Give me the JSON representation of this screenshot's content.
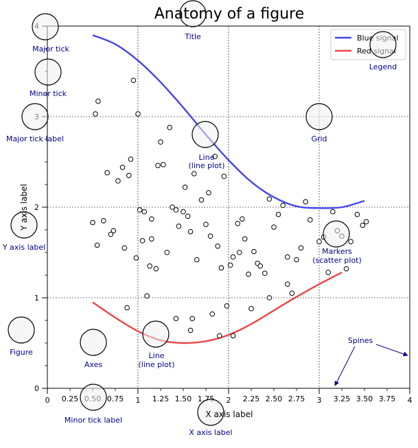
{
  "chart_data": {
    "type": "line",
    "title": "Anatomy of a figure",
    "xlabel": "X axis label",
    "ylabel": "Y axis label",
    "xlim": [
      0,
      4
    ],
    "ylim": [
      0,
      4
    ],
    "major_x_ticks": [
      0,
      1,
      2,
      3,
      4
    ],
    "minor_x_ticks": [
      0.25,
      0.5,
      0.75,
      1.25,
      1.5,
      1.75,
      2.25,
      2.5,
      2.75,
      3.25,
      3.5,
      3.75
    ],
    "major_x_tick_labels": [
      "0",
      "1",
      "2",
      "3",
      "4"
    ],
    "minor_x_tick_labels": [
      "0.25",
      "0.50",
      "0.75",
      "1.25",
      "1.50",
      "1.75",
      "2.25",
      "2.50",
      "2.75",
      "3.25",
      "3.50",
      "3.75"
    ],
    "major_y_ticks": [
      0,
      1,
      2,
      3,
      4
    ],
    "major_y_tick_labels": [
      "0",
      "1",
      "2",
      "3",
      "4"
    ],
    "grid": true,
    "legend": {
      "position": "top-right",
      "entries": [
        "Blue signal",
        "Red signal"
      ]
    },
    "series": [
      {
        "name": "Blue signal",
        "color": "#4444ee",
        "x": [
          0.5,
          0.75,
          1.0,
          1.25,
          1.5,
          1.75,
          2.0,
          2.25,
          2.5,
          2.75,
          3.0,
          3.25,
          3.5
        ],
        "y": [
          3.9,
          3.8,
          3.62,
          3.38,
          3.1,
          2.8,
          2.52,
          2.28,
          2.11,
          2.01,
          1.99,
          2.0,
          2.07
        ]
      },
      {
        "name": "Red signal",
        "color": "#ee4444",
        "x": [
          0.5,
          0.75,
          1.0,
          1.25,
          1.5,
          1.75,
          2.0,
          2.25,
          2.5,
          2.75,
          3.0,
          3.25
        ],
        "y": [
          0.95,
          0.78,
          0.63,
          0.53,
          0.5,
          0.52,
          0.59,
          0.71,
          0.86,
          1.01,
          1.15,
          1.28
        ]
      },
      {
        "name": "Markers",
        "type": "scatter",
        "color": "#000000",
        "x": [
          0.53,
          0.56,
          0.62,
          0.66,
          0.73,
          0.78,
          0.83,
          0.85,
          0.9,
          0.92,
          0.95,
          0.98,
          1.0,
          1.02,
          1.05,
          1.07,
          1.1,
          1.13,
          1.15,
          1.2,
          1.22,
          1.25,
          1.28,
          1.32,
          1.35,
          1.38,
          1.42,
          1.45,
          1.5,
          1.52,
          1.55,
          1.58,
          1.62,
          1.65,
          1.7,
          1.75,
          1.78,
          1.8,
          1.85,
          1.88,
          1.92,
          1.95,
          1.98,
          2.02,
          2.05,
          2.1,
          2.15,
          2.18,
          2.22,
          2.28,
          2.32,
          2.35,
          2.4,
          2.45,
          2.5,
          2.55,
          2.6,
          2.65,
          2.7,
          2.75,
          2.8,
          2.85,
          2.9,
          3.0,
          3.05,
          3.1,
          3.15,
          3.2,
          3.25,
          3.3,
          3.35,
          3.42,
          3.48,
          3.52,
          0.5,
          0.55,
          0.88,
          1.15,
          1.42,
          1.58,
          1.82,
          2.05,
          2.25,
          2.45,
          2.65,
          0.7,
          1.6,
          1.9,
          2.12
        ],
        "y": [
          3.03,
          3.17,
          1.85,
          2.38,
          1.74,
          2.29,
          2.44,
          1.55,
          2.35,
          2.53,
          3.4,
          1.44,
          3.03,
          1.97,
          1.63,
          1.95,
          1.02,
          1.35,
          1.65,
          1.32,
          2.46,
          2.72,
          2.47,
          1.5,
          2.88,
          2.0,
          1.97,
          1.79,
          1.95,
          2.22,
          1.9,
          1.73,
          2.37,
          1.42,
          2.08,
          1.81,
          2.16,
          1.68,
          2.56,
          1.57,
          1.33,
          2.34,
          0.91,
          1.36,
          1.45,
          1.82,
          1.87,
          1.65,
          1.26,
          1.51,
          1.38,
          1.35,
          1.27,
          2.09,
          1.78,
          1.92,
          2.02,
          1.45,
          1.05,
          1.42,
          1.55,
          2.06,
          1.86,
          1.62,
          1.67,
          1.28,
          1.95,
          1.74,
          1.68,
          1.32,
          1.62,
          1.92,
          1.8,
          1.84,
          1.83,
          1.58,
          0.89,
          1.87,
          0.77,
          0.64,
          0.82,
          0.58,
          0.88,
          1.0,
          1.15,
          1.7,
          0.77,
          0.58,
          1.5
        ]
      }
    ],
    "annotations": [
      {
        "name": "title",
        "label": "Title"
      },
      {
        "name": "major-tick",
        "label": "Major tick"
      },
      {
        "name": "minor-tick",
        "label": "Minor tick"
      },
      {
        "name": "major-tick-label",
        "label": "Major tick label"
      },
      {
        "name": "legend",
        "label": "Legend"
      },
      {
        "name": "grid",
        "label": "Grid"
      },
      {
        "name": "line-blue",
        "label": "Line",
        "sublabel": "(line plot)"
      },
      {
        "name": "y-axis-label",
        "label": "Y axis label"
      },
      {
        "name": "markers",
        "label": "Markers",
        "sublabel": "(scatter plot)"
      },
      {
        "name": "figure",
        "label": "Figure"
      },
      {
        "name": "axes",
        "label": "Axes"
      },
      {
        "name": "line-red",
        "label": "Line",
        "sublabel": "(line plot)"
      },
      {
        "name": "spines",
        "label": "Spines"
      },
      {
        "name": "minor-tick-label",
        "label": "Minor tick label"
      },
      {
        "name": "x-axis-label",
        "label": "X axis label"
      }
    ],
    "annotation_color": "#00008b"
  }
}
